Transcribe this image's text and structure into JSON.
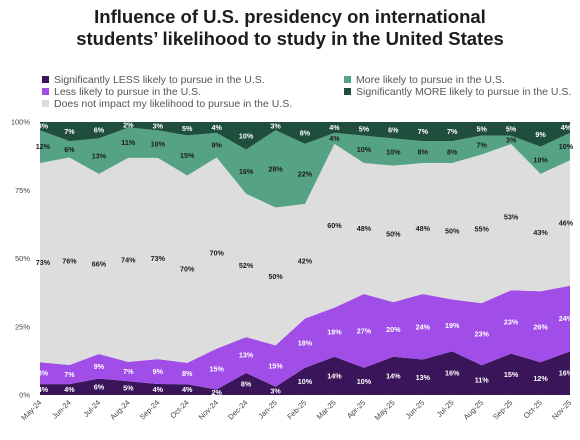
{
  "title_line1": "Influence of U.S. presidency on international",
  "title_line2": "students’ likelihood to study in the United States",
  "colors": {
    "sig_less": "#3b1559",
    "less": "#a14ee8",
    "none": "#dddddd",
    "more": "#55a384",
    "sig_more": "#1f4f3c"
  },
  "chart_data": {
    "type": "area",
    "stacked": true,
    "x": [
      "May-24",
      "Jun-24",
      "Jul-24",
      "Aug-24",
      "Sep-24",
      "Oct-24",
      "Nov-24",
      "Dec-24",
      "Jan-25",
      "Feb-25",
      "Mar-25",
      "Apr-25",
      "May-25",
      "Jun-25",
      "Jul-25",
      "Aug-25",
      "Sep-25",
      "Oct-25",
      "Nov-25"
    ],
    "ylim": [
      0,
      100
    ],
    "yticks": [
      "0%",
      "25%",
      "50%",
      "75%",
      "100%"
    ],
    "legend_position": "top",
    "series": [
      {
        "key": "sig_less",
        "name": "Significantly LESS likely to pursue in the U.S.",
        "values": [
          4,
          4,
          6,
          5,
          4,
          4,
          2,
          8,
          3,
          10,
          14,
          10,
          14,
          13,
          16,
          11,
          15,
          12,
          16
        ]
      },
      {
        "key": "less",
        "name": "Less likely to pursue in the U.S.",
        "values": [
          8,
          7,
          9,
          7,
          9,
          8,
          15,
          13,
          15,
          18,
          18,
          27,
          20,
          24,
          19,
          23,
          23,
          26,
          24
        ]
      },
      {
        "key": "none",
        "name": "Does not impact my likelihood to pursue in the U.S.",
        "values": [
          73,
          76,
          66,
          74,
          73,
          70,
          70,
          52,
          50,
          42,
          60,
          48,
          50,
          48,
          50,
          55,
          53,
          43,
          46
        ]
      },
      {
        "key": "more",
        "name": "More likely to pursue in the U.S.",
        "values": [
          12,
          6,
          13,
          11,
          10,
          15,
          9,
          16,
          28,
          22,
          4,
          10,
          10,
          8,
          8,
          7,
          3,
          10,
          10
        ]
      },
      {
        "key": "sig_more",
        "name": "Significantly MORE likely to pursue in the U.S.",
        "values": [
          3,
          7,
          6,
          2,
          3,
          5,
          4,
          10,
          3,
          8,
          4,
          5,
          6,
          7,
          7,
          5,
          5,
          9,
          4
        ]
      }
    ],
    "labels": {
      "sig_less": [
        "4%",
        "4%",
        "6%",
        "5%",
        "4%",
        "4%",
        "2%",
        "8%",
        "3%",
        "10%",
        "14%",
        "10%",
        "14%",
        "13%",
        "16%",
        "11%",
        "15%",
        "12%",
        "16%"
      ],
      "less": [
        "8%",
        "7%",
        "9%",
        "7%",
        "9%",
        "8%",
        "15%",
        "13%",
        "15%",
        "18%",
        "18%",
        "27%",
        "20%",
        "24%",
        "19%",
        "23%",
        "23%",
        "26%",
        "24%"
      ],
      "none": [
        "73%",
        "76%",
        "66%",
        "74%",
        "73%",
        "70%",
        "70%",
        "52%",
        "50%",
        "42%",
        "60%",
        "48%",
        "50%",
        "48%",
        "50%",
        "55%",
        "53%",
        "43%",
        "46%"
      ],
      "more": [
        "12%",
        "6%",
        "13%",
        "11%",
        "10%",
        "15%",
        "9%",
        "16%",
        "28%",
        "22%",
        "4%",
        "10%",
        "10%",
        "8%",
        "8%",
        "7%",
        "3%",
        "10%",
        "10%"
      ],
      "sig_more": [
        "3%",
        "7%",
        "6%",
        "2%",
        "3%",
        "5%",
        "4%",
        "10%",
        "3%",
        "8%",
        "4%",
        "5%",
        "6%",
        "7%",
        "7%",
        "5%",
        "5%",
        "9%",
        "4%"
      ]
    }
  }
}
